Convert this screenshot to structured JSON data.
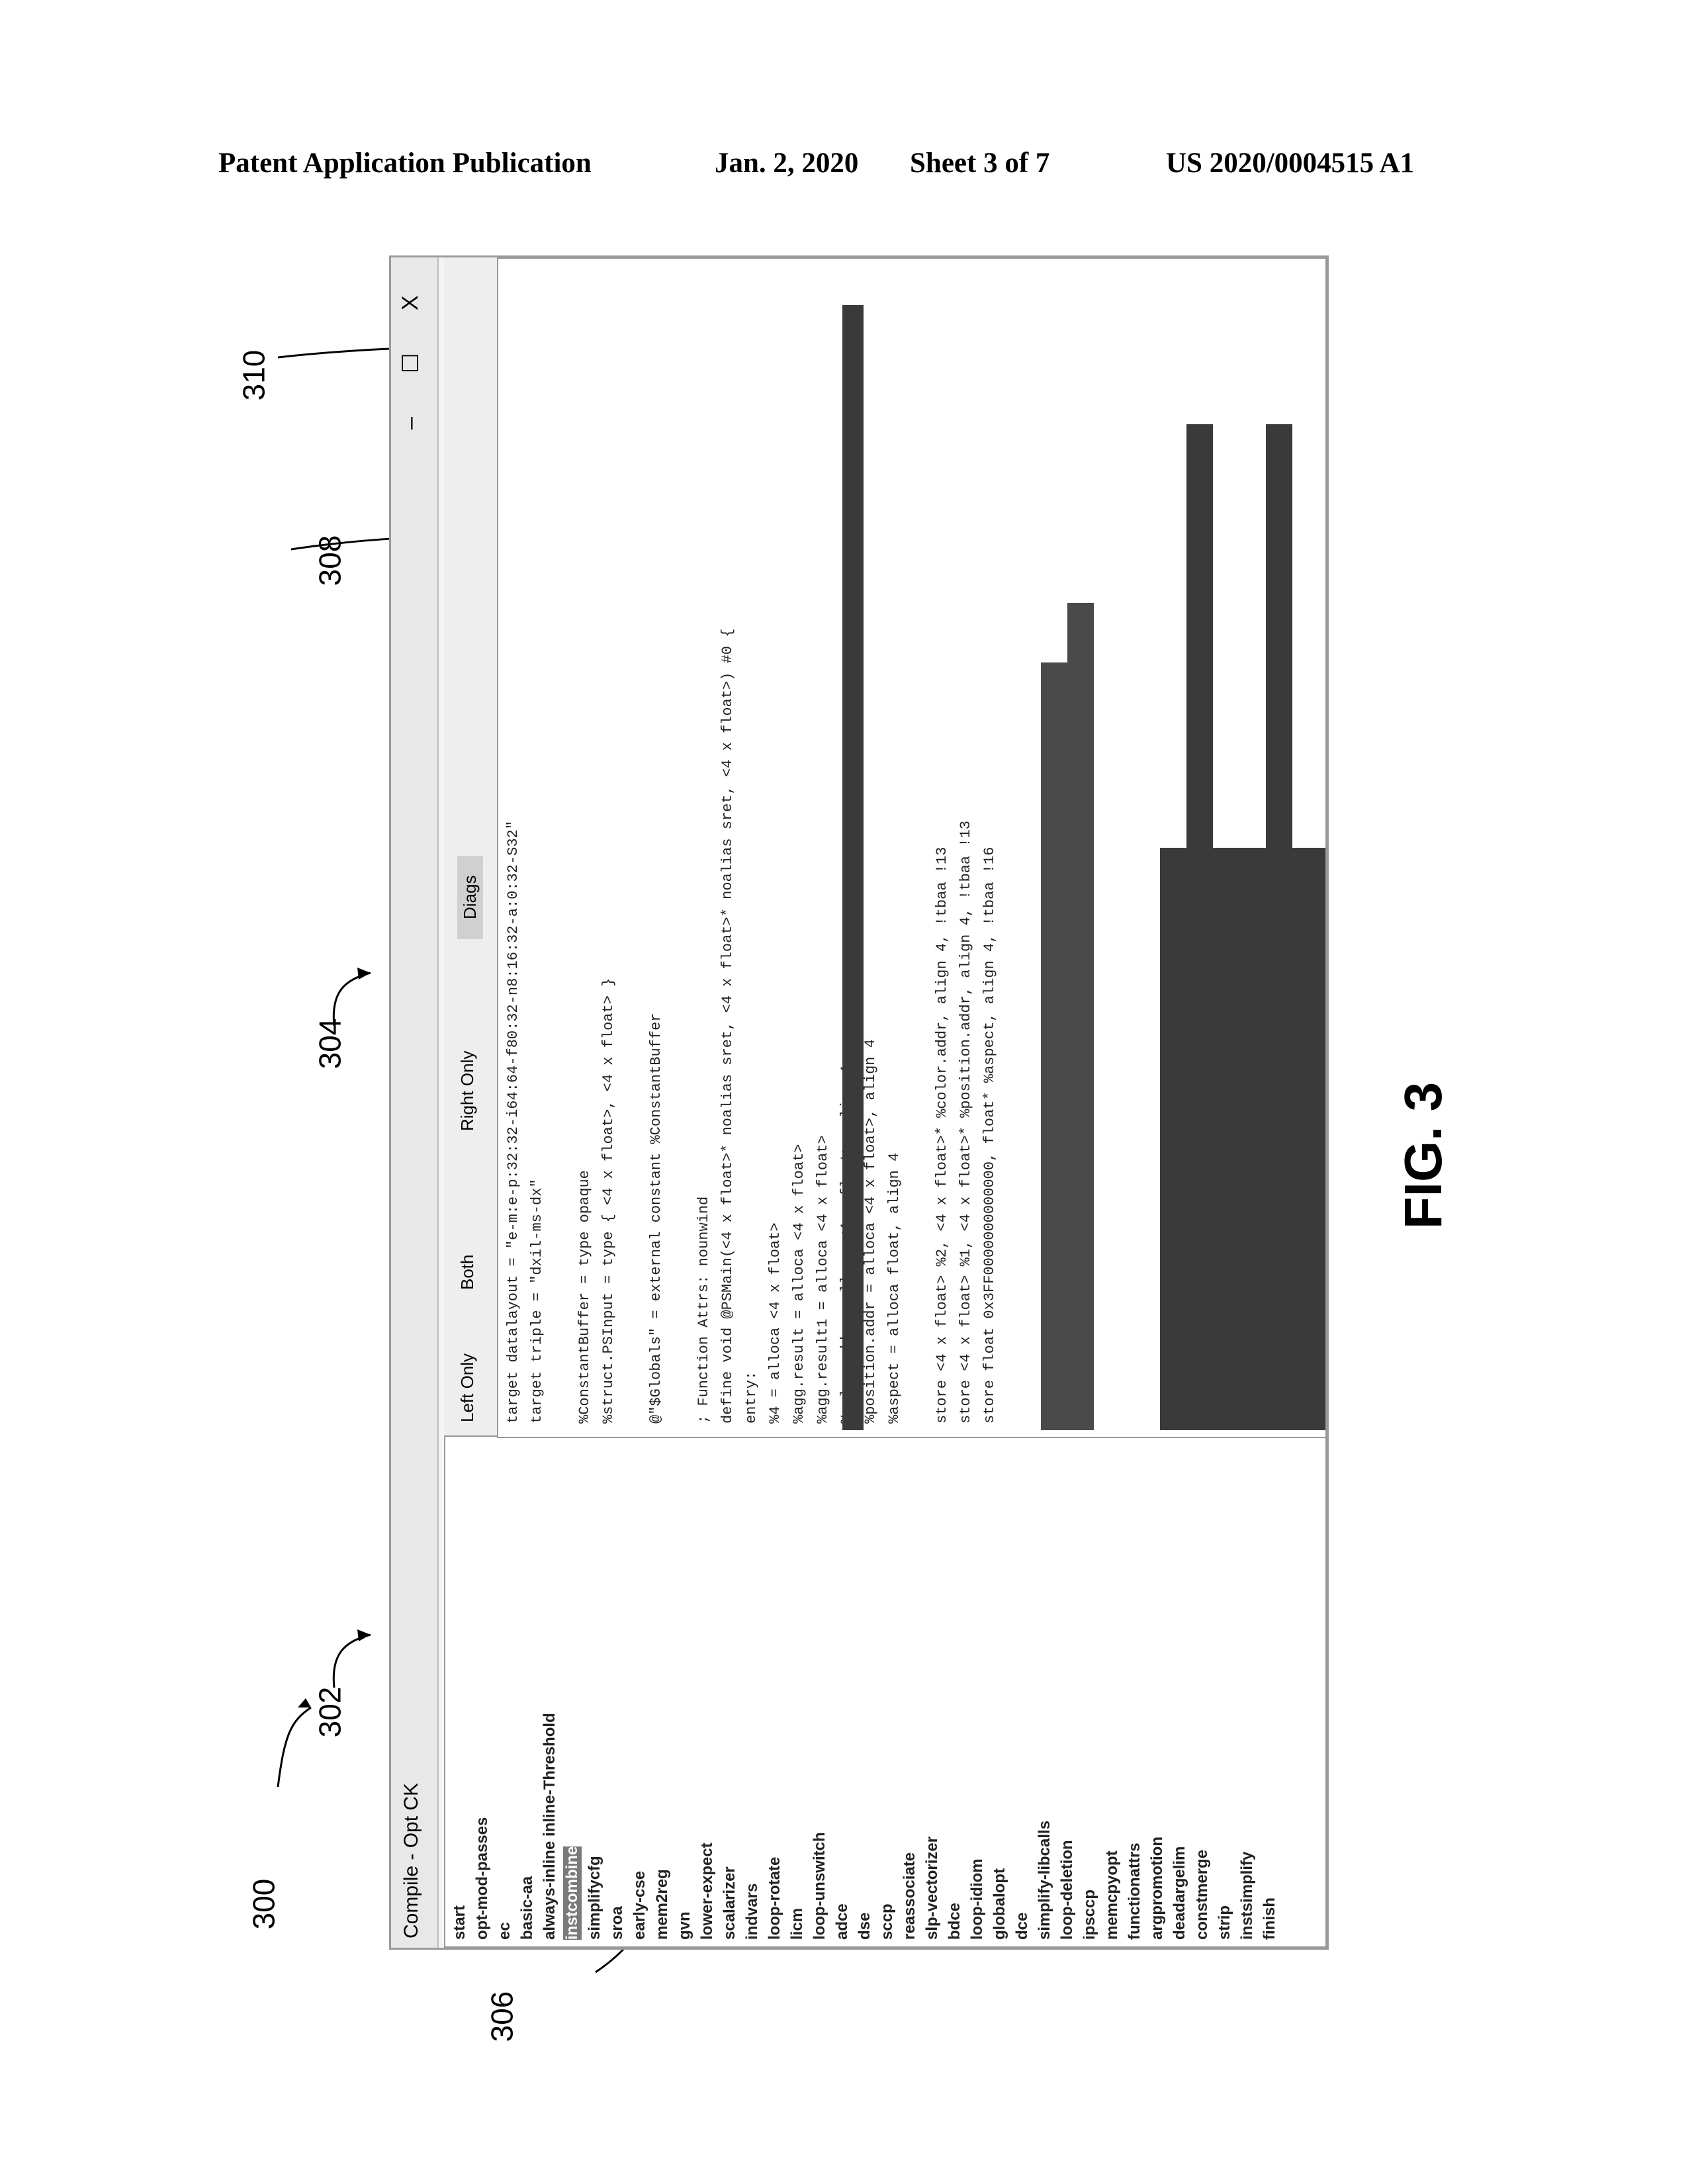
{
  "header": {
    "left": "Patent Application Publication",
    "date": "Jan. 2, 2020",
    "sheet": "Sheet 3 of 7",
    "pub_number": "US 2020/0004515 A1"
  },
  "figure_label": "FIG. 3",
  "refs": {
    "r300": "300",
    "r302": "302",
    "r304": "304",
    "r306": "306",
    "r308": "308",
    "r310": "310"
  },
  "window": {
    "title": "Compile - Opt CK",
    "controls": {
      "minimize": "–",
      "maximize": "☐",
      "close": "X"
    },
    "radio_options": [
      "Left Only",
      "Both",
      "Right Only"
    ],
    "tab": "Diags"
  },
  "pass_list": [
    "start",
    "opt-mod-passes",
    "ec",
    "basic-aa",
    "always-inline inline-Threshold",
    "instcombine",
    "simplifycfg",
    "sroa",
    "early-cse",
    "mem2reg",
    "gvn",
    "lower-expect",
    "scalarizer",
    "indvars",
    "loop-rotate",
    "licm",
    "loop-unswitch",
    "adce",
    "dse",
    "sccp",
    "reassociate",
    "slp-vectorizer",
    "bdce",
    "loop-idiom",
    "globalopt",
    "dce",
    "simplify-libcalls",
    "loop-deletion",
    "ipsccp",
    "memcpyopt",
    "functionattrs",
    "argpromotion",
    "deadargelim",
    "constmerge",
    "strip",
    "instsimplify",
    "finish"
  ],
  "code_lines": [
    "target datalayout = \"e-m:e-p:32:32-i64:64-f80:32-n8:16:32-a:0:32-S32\"",
    "target triple = \"dxil-ms-dx\"",
    "",
    "%ConstantBuffer = type opaque",
    "%struct.PSInput = type { <4 x float>, <4 x float> }",
    "",
    "@\"$Globals\" = external constant %ConstantBuffer",
    "",
    "; Function Attrs: nounwind",
    "define void @PSMain(<4 x float>* noalias sret, <4 x float>* noalias sret, <4 x float>) #0 {",
    "entry:",
    "  %4 = alloca <4 x float>",
    "  %agg.result = alloca <4 x float>",
    "  %agg.result1 = alloca <4 x float>",
    "  %color.addr = alloca <4 x float>, align 4",
    "  %position.addr = alloca <4 x float>, align 4",
    "  %aspect = alloca float, align 4",
    "",
    "  store <4 x float> %2, <4 x float>* %color.addr, align 4, !tbaa !13",
    "  store <4 x float> %1, <4 x float>* %position.addr, align 4, !tbaa !13",
    "  store float 0x3FF0000000000000, float* %aspect, align 4, !tbaa !16"
  ]
}
